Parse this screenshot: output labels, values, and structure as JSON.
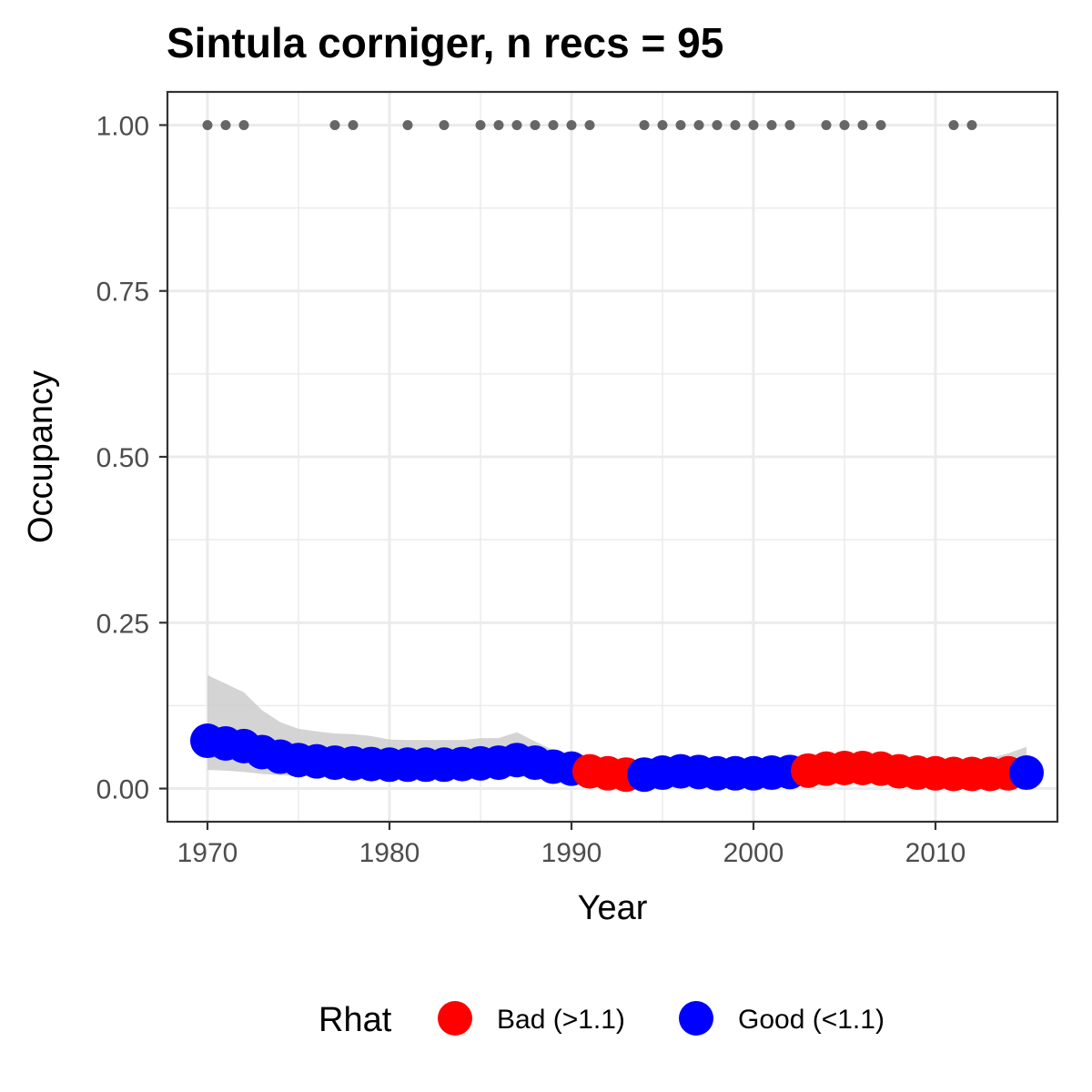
{
  "chart_data": {
    "type": "scatter",
    "title": "Sintula corniger, n recs = 95",
    "xlabel": "Year",
    "ylabel": "Occupancy",
    "xlim": [
      1967.8,
      2016.7
    ],
    "ylim": [
      -0.05,
      1.05
    ],
    "x_ticks": [
      1970,
      1980,
      1990,
      2000,
      2010
    ],
    "y_ticks": [
      0.0,
      0.25,
      0.5,
      0.75,
      1.0
    ],
    "x_tick_labels": [
      "1970",
      "1980",
      "1990",
      "2000",
      "2010"
    ],
    "y_tick_labels": [
      "0.00",
      "0.25",
      "0.50",
      "0.75",
      "1.00"
    ],
    "grid": true,
    "colors": {
      "bad": "#ff0000",
      "good": "#0000ff",
      "records": "#666666",
      "ribbon": "#cccccc",
      "grid": "#ebebeb",
      "panel_border": "#333333"
    },
    "legend": {
      "title": "Rhat",
      "position": "bottom",
      "items": [
        {
          "label": "Bad (>1.1)",
          "color": "#ff0000"
        },
        {
          "label": "Good (<1.1)",
          "color": "#0000ff"
        }
      ]
    },
    "series": [
      {
        "name": "Occupancy",
        "x": [
          1970,
          1971,
          1972,
          1973,
          1974,
          1975,
          1976,
          1977,
          1978,
          1979,
          1980,
          1981,
          1982,
          1983,
          1984,
          1985,
          1986,
          1987,
          1988,
          1989,
          1990,
          1991,
          1992,
          1993,
          1994,
          1995,
          1996,
          1997,
          1998,
          1999,
          2000,
          2001,
          2002,
          2003,
          2004,
          2005,
          2006,
          2007,
          2008,
          2009,
          2010,
          2011,
          2012,
          2013,
          2014,
          2015
        ],
        "y": [
          0.072,
          0.068,
          0.064,
          0.055,
          0.048,
          0.043,
          0.041,
          0.039,
          0.038,
          0.037,
          0.036,
          0.036,
          0.036,
          0.036,
          0.037,
          0.038,
          0.039,
          0.043,
          0.039,
          0.033,
          0.03,
          0.026,
          0.023,
          0.021,
          0.021,
          0.024,
          0.026,
          0.025,
          0.023,
          0.023,
          0.023,
          0.024,
          0.025,
          0.027,
          0.03,
          0.031,
          0.031,
          0.03,
          0.026,
          0.024,
          0.023,
          0.022,
          0.022,
          0.022,
          0.023,
          0.024
        ],
        "rhat": [
          "Good",
          "Good",
          "Good",
          "Good",
          "Good",
          "Good",
          "Good",
          "Good",
          "Good",
          "Good",
          "Good",
          "Good",
          "Good",
          "Good",
          "Good",
          "Good",
          "Good",
          "Good",
          "Good",
          "Good",
          "Good",
          "Bad",
          "Bad",
          "Bad",
          "Good",
          "Good",
          "Good",
          "Good",
          "Good",
          "Good",
          "Good",
          "Good",
          "Good",
          "Bad",
          "Bad",
          "Bad",
          "Bad",
          "Bad",
          "Bad",
          "Bad",
          "Bad",
          "Bad",
          "Bad",
          "Bad",
          "Bad",
          "Good"
        ]
      }
    ],
    "ribbon": {
      "x": [
        1970,
        1971,
        1972,
        1973,
        1974,
        1975,
        1976,
        1977,
        1978,
        1979,
        1980,
        1981,
        1982,
        1983,
        1984,
        1985,
        1986,
        1987,
        1988,
        1989,
        1990,
        1991,
        1992,
        1993,
        1994,
        1995,
        1996,
        1997,
        1998,
        1999,
        2000,
        2001,
        2002,
        2003,
        2004,
        2005,
        2006,
        2007,
        2008,
        2009,
        2010,
        2011,
        2012,
        2013,
        2014,
        2015
      ],
      "upper": [
        0.171,
        0.158,
        0.145,
        0.118,
        0.1,
        0.09,
        0.086,
        0.083,
        0.082,
        0.079,
        0.074,
        0.073,
        0.073,
        0.073,
        0.073,
        0.076,
        0.076,
        0.085,
        0.071,
        0.058,
        0.052,
        0.048,
        0.043,
        0.041,
        0.041,
        0.044,
        0.046,
        0.044,
        0.042,
        0.042,
        0.042,
        0.043,
        0.044,
        0.046,
        0.049,
        0.05,
        0.05,
        0.049,
        0.045,
        0.043,
        0.042,
        0.042,
        0.043,
        0.046,
        0.053,
        0.063
      ],
      "lower": [
        0.028,
        0.027,
        0.025,
        0.022,
        0.02,
        0.019,
        0.018,
        0.017,
        0.017,
        0.016,
        0.016,
        0.016,
        0.016,
        0.016,
        0.016,
        0.017,
        0.017,
        0.018,
        0.017,
        0.015,
        0.014,
        0.012,
        0.011,
        0.01,
        0.01,
        0.011,
        0.012,
        0.012,
        0.011,
        0.011,
        0.011,
        0.011,
        0.012,
        0.013,
        0.014,
        0.015,
        0.015,
        0.014,
        0.012,
        0.011,
        0.011,
        0.01,
        0.01,
        0.01,
        0.01,
        0.01
      ]
    },
    "record_years": [
      1970,
      1971,
      1972,
      1977,
      1978,
      1981,
      1983,
      1985,
      1986,
      1987,
      1988,
      1989,
      1990,
      1991,
      1994,
      1995,
      1996,
      1997,
      1998,
      1999,
      2000,
      2001,
      2002,
      2004,
      2005,
      2006,
      2007,
      2011,
      2012
    ],
    "record_value": 1.0
  }
}
